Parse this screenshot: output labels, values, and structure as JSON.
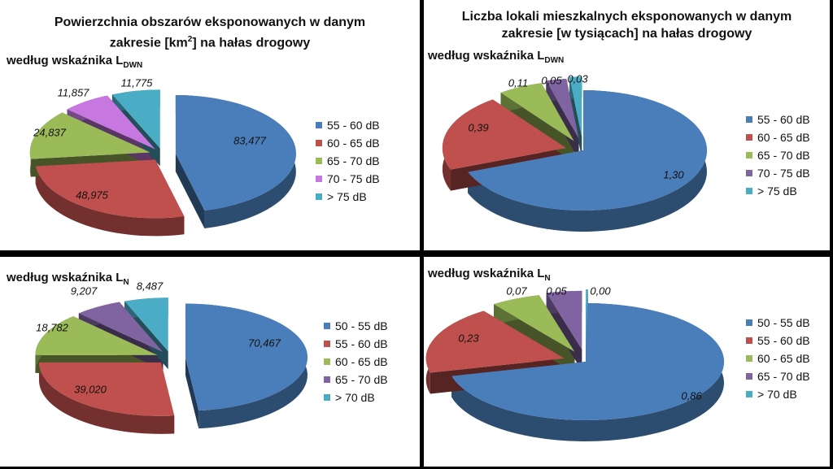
{
  "left_title": {
    "line1": "Powierzchnia obszarów eksponowanych w danym",
    "line2_pre": "zakresie [km",
    "line2_sup": "2",
    "line2_post": "] na hałas drogowy"
  },
  "right_title": {
    "line1": "Liczba lokali mieszkalnych eksponowanych w danym",
    "line2": "zakresie [w tysiącach] na hałas drogowy"
  },
  "subtitles": {
    "tl": {
      "pre": "według wskaźnika L",
      "sub": "DWN"
    },
    "tr": {
      "pre": "według wskaźnika L",
      "sub": "DWN"
    },
    "bl": {
      "pre": "według wskaźnika L",
      "sub": "N"
    },
    "br": {
      "pre": "według wskaźnika L",
      "sub": "N"
    }
  },
  "chart_data": [
    {
      "type": "pie",
      "title": "Powierzchnia obszarów eksponowanych w danym zakresie [km2] na hałas drogowy – według wskaźnika LDWN",
      "categories": [
        "55 - 60 dB",
        "60 - 65 dB",
        "65 - 70 dB",
        "70 - 75 dB",
        "> 75 dB"
      ],
      "values": [
        83.477,
        48.975,
        24.837,
        11.857,
        11.775
      ],
      "labels": [
        "83,477",
        "48,975",
        "24,837",
        "11,857",
        "11,775"
      ],
      "colors": [
        "#4a7ebb",
        "#c0504d",
        "#9bbb59",
        "#c678e0",
        "#4bacc6"
      ],
      "legend_position": "right"
    },
    {
      "type": "pie",
      "title": "Liczba lokali mieszkalnych eksponowanych w danym zakresie [w tysiącach] na hałas drogowy – według wskaźnika LDWN",
      "categories": [
        "55 - 60 dB",
        "60 - 65 dB",
        "65 - 70 dB",
        "70 - 75 dB",
        "> 75 dB"
      ],
      "values": [
        1.3,
        0.39,
        0.11,
        0.05,
        0.03
      ],
      "labels": [
        "1,30",
        "0,39",
        "0,11",
        "0,05",
        "0,03"
      ],
      "colors": [
        "#4a7ebb",
        "#c0504d",
        "#9bbb59",
        "#8064a2",
        "#4bacc6"
      ],
      "legend_position": "right"
    },
    {
      "type": "pie",
      "title": "Powierzchnia obszarów eksponowanych w danym zakresie [km2] na hałas drogowy – według wskaźnika LN",
      "categories": [
        "50 - 55 dB",
        "55 - 60 dB",
        "60 - 65 dB",
        "65 - 70 dB",
        "> 70 dB"
      ],
      "values": [
        70.467,
        39.02,
        18.782,
        9.207,
        8.487
      ],
      "labels": [
        "70,467",
        "39,020",
        "18,782",
        "9,207",
        "8,487"
      ],
      "colors": [
        "#4a7ebb",
        "#c0504d",
        "#9bbb59",
        "#8064a2",
        "#4bacc6"
      ],
      "legend_position": "right"
    },
    {
      "type": "pie",
      "title": "Liczba lokali mieszkalnych eksponowanych w danym zakresie [w tysiącach] na hałas drogowy – według wskaźnika LN",
      "categories": [
        "50 - 55 dB",
        "55 - 60 dB",
        "60 - 65 dB",
        "65 - 70 dB",
        "> 70 dB"
      ],
      "values": [
        0.86,
        0.23,
        0.07,
        0.05,
        0.0
      ],
      "labels": [
        "0,86",
        "0,23",
        "0,07",
        "0,05",
        "0,00"
      ],
      "colors": [
        "#4a7ebb",
        "#c0504d",
        "#9bbb59",
        "#8064a2",
        "#4bacc6"
      ],
      "legend_position": "right"
    }
  ]
}
